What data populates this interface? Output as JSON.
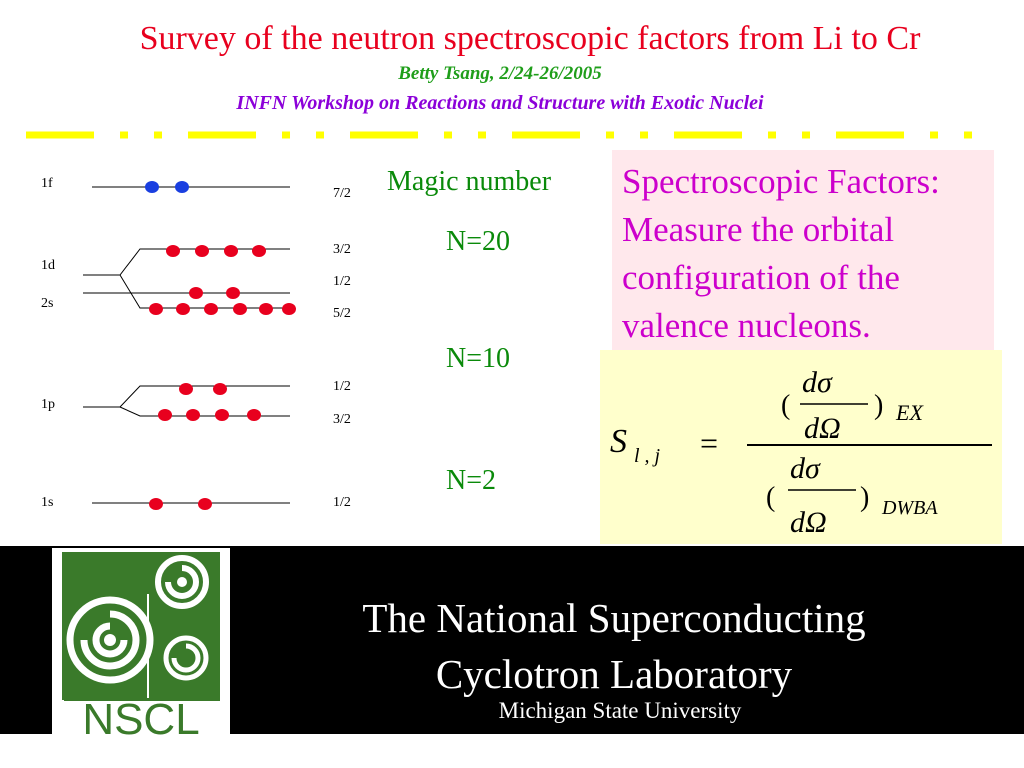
{
  "header": {
    "title": "Survey of the neutron spectroscopic factors from Li to Cr",
    "author": "Betty Tsang, 2/24-26/2005",
    "workshop": "INFN Workshop on Reactions and Structure with Exotic Nuclei"
  },
  "colors": {
    "title": "#e8001e",
    "author": "#1f9e1a",
    "workshop": "#8b00d9",
    "rule": "#ffff00",
    "proton_dot": "#e8001e",
    "neutron_dot": "#1a3fe0",
    "spec_box_bg": "#ffe8ec",
    "spec_text": "#cc00cc",
    "formula_bg": "#ffffcc",
    "magic_text": "#0a8a0a",
    "footer_bg": "#000000",
    "logo_green": "#3a7a2a"
  },
  "shell_diagram": {
    "shells": [
      {
        "label": "1f",
        "substates": [
          {
            "j": "7/2",
            "dots": 2,
            "color": "neutron"
          }
        ]
      },
      {
        "label": "1d",
        "substates": [
          {
            "j": "3/2",
            "dots": 4,
            "color": "proton"
          }
        ]
      },
      {
        "label": "2s",
        "substates": [
          {
            "j": "1/2",
            "dots": 2,
            "color": "proton"
          }
        ]
      },
      {
        "label": "",
        "substates": [
          {
            "j": "5/2",
            "dots": 6,
            "color": "proton"
          }
        ]
      },
      {
        "label": "1p",
        "substates": [
          {
            "j": "1/2",
            "dots": 2,
            "color": "proton"
          },
          {
            "j": "3/2",
            "dots": 4,
            "color": "proton"
          }
        ]
      },
      {
        "label": "1s",
        "substates": [
          {
            "j": "1/2",
            "dots": 2,
            "color": "proton"
          }
        ]
      }
    ]
  },
  "magic": {
    "heading": "Magic number",
    "items": [
      "N=20",
      "N=10",
      "N=2"
    ]
  },
  "spec_box": {
    "lines": [
      "Spectroscopic Factors:",
      "Measure the orbital",
      "configuration of the",
      "valence nucleons."
    ]
  },
  "formula": {
    "lhs": "S",
    "subscript": "l , j",
    "equals": "=",
    "numerator_top": "dσ",
    "numerator_bottom": "dΩ",
    "numerator_sub": "EX",
    "denominator_top": "dσ",
    "denominator_bottom": "dΩ",
    "denominator_sub": "DWBA",
    "paren_open": "(",
    "paren_close": ")"
  },
  "footer": {
    "lab_line1": "The National Superconducting",
    "lab_line2": "Cyclotron Laboratory",
    "university": "Michigan State University",
    "logo_text": "NSCL"
  }
}
